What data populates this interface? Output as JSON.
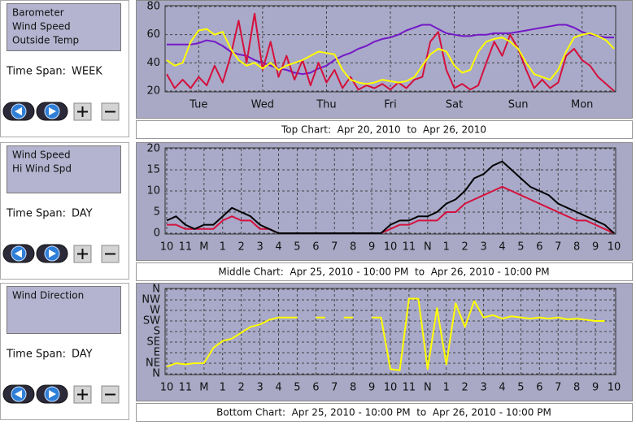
{
  "panels": [
    {
      "time_span_label": "Time Span:",
      "time_span": "WEEK"
    },
    {
      "time_span_label": "Time Span:",
      "time_span": "DAY"
    },
    {
      "time_span_label": "Time Span:",
      "time_span": "DAY"
    }
  ],
  "chart_data": [
    {
      "type": "line",
      "title": "Top Chart:  Apr 20, 2010  to  Apr 26, 2010",
      "grid": true,
      "xlim": [
        0,
        7
      ],
      "ylim": [
        20,
        80
      ],
      "yticks": [
        20,
        40,
        60,
        80
      ],
      "xticks": [
        {
          "value": 0.5,
          "label": "Tue"
        },
        {
          "value": 1.5,
          "label": "Wed"
        },
        {
          "value": 2.5,
          "label": "Thu"
        },
        {
          "value": 3.5,
          "label": "Fri"
        },
        {
          "value": 4.5,
          "label": "Sat"
        },
        {
          "value": 5.5,
          "label": "Sun"
        },
        {
          "value": 6.5,
          "label": "Mon"
        }
      ],
      "x": [
        0,
        0.125,
        0.25,
        0.375,
        0.5,
        0.625,
        0.75,
        0.875,
        1,
        1.125,
        1.25,
        1.375,
        1.5,
        1.625,
        1.75,
        1.875,
        2,
        2.125,
        2.25,
        2.375,
        2.5,
        2.625,
        2.75,
        2.875,
        3,
        3.125,
        3.25,
        3.375,
        3.5,
        3.625,
        3.75,
        3.875,
        4,
        4.125,
        4.25,
        4.375,
        4.5,
        4.625,
        4.75,
        4.875,
        5,
        5.125,
        5.25,
        5.375,
        5.5,
        5.625,
        5.75,
        5.875,
        6,
        6.125,
        6.25,
        6.375,
        6.5,
        6.625,
        6.75,
        6.875,
        7
      ],
      "series": [
        {
          "name": "Barometer",
          "color": "#7418c8",
          "values": [
            53,
            53,
            53,
            53,
            54,
            56,
            55,
            52,
            48,
            46,
            45,
            42,
            40,
            38,
            36,
            35,
            33,
            32,
            33,
            36,
            38,
            42,
            45,
            47,
            50,
            52,
            55,
            57,
            58,
            60,
            63,
            65,
            67,
            67,
            64,
            61,
            60,
            59,
            59,
            60,
            60,
            61,
            61,
            61,
            62,
            63,
            64,
            65,
            66,
            67,
            67,
            65,
            62,
            60,
            59,
            58,
            58
          ]
        },
        {
          "name": "Wind Speed",
          "color": "#d4103c",
          "values": [
            32,
            22,
            28,
            22,
            30,
            24,
            38,
            26,
            45,
            70,
            40,
            75,
            35,
            55,
            30,
            45,
            28,
            42,
            24,
            40,
            26,
            35,
            22,
            30,
            21,
            24,
            22,
            25,
            21,
            26,
            22,
            28,
            30,
            55,
            62,
            35,
            22,
            25,
            21,
            24,
            40,
            55,
            45,
            60,
            50,
            35,
            22,
            28,
            22,
            26,
            45,
            50,
            42,
            38,
            30,
            25,
            20
          ]
        },
        {
          "name": "Outside Temp",
          "color": "#ffff00",
          "values": [
            42,
            38,
            40,
            55,
            63,
            64,
            60,
            62,
            50,
            42,
            38,
            40,
            36,
            40,
            35,
            38,
            40,
            42,
            45,
            48,
            47,
            46,
            35,
            28,
            26,
            25,
            26,
            28,
            27,
            26,
            27,
            30,
            38,
            46,
            50,
            48,
            38,
            33,
            35,
            48,
            55,
            57,
            58,
            55,
            50,
            40,
            32,
            30,
            28,
            35,
            48,
            58,
            60,
            61,
            59,
            56,
            50
          ]
        }
      ]
    },
    {
      "type": "line",
      "title": "Middle Chart:  Apr 25, 2010 - 10:00 PM  to  Apr 26, 2010 - 10:00 PM",
      "grid": true,
      "xlim": [
        0,
        24
      ],
      "ylim": [
        0,
        20
      ],
      "yticks": [
        0,
        5,
        10,
        15,
        20
      ],
      "xticks": [
        {
          "value": 0,
          "label": "10"
        },
        {
          "value": 1,
          "label": "11"
        },
        {
          "value": 2,
          "label": "M"
        },
        {
          "value": 3,
          "label": "1"
        },
        {
          "value": 4,
          "label": "2"
        },
        {
          "value": 5,
          "label": "3"
        },
        {
          "value": 6,
          "label": "4"
        },
        {
          "value": 7,
          "label": "5"
        },
        {
          "value": 8,
          "label": "6"
        },
        {
          "value": 9,
          "label": "7"
        },
        {
          "value": 10,
          "label": "8"
        },
        {
          "value": 11,
          "label": "9"
        },
        {
          "value": 12,
          "label": "10"
        },
        {
          "value": 13,
          "label": "11"
        },
        {
          "value": 14,
          "label": "N"
        },
        {
          "value": 15,
          "label": "1"
        },
        {
          "value": 16,
          "label": "2"
        },
        {
          "value": 17,
          "label": "3"
        },
        {
          "value": 18,
          "label": "4"
        },
        {
          "value": 19,
          "label": "5"
        },
        {
          "value": 20,
          "label": "6"
        },
        {
          "value": 21,
          "label": "7"
        },
        {
          "value": 22,
          "label": "8"
        },
        {
          "value": 23,
          "label": "9"
        },
        {
          "value": 24,
          "label": "10"
        }
      ],
      "x": [
        0,
        0.5,
        1,
        1.5,
        2,
        2.5,
        3,
        3.5,
        4,
        4.5,
        5,
        5.5,
        6,
        6.5,
        7,
        7.5,
        8,
        8.5,
        9,
        9.5,
        10,
        10.5,
        11,
        11.5,
        12,
        12.5,
        13,
        13.5,
        14,
        14.5,
        15,
        15.5,
        16,
        16.5,
        17,
        17.5,
        18,
        18.5,
        19,
        19.5,
        20,
        20.5,
        21,
        21.5,
        22,
        22.5,
        23,
        23.5,
        24
      ],
      "series": [
        {
          "name": "Wind Speed",
          "color": "#d4103c",
          "values": [
            2,
            2,
            1,
            1,
            1,
            1,
            3,
            4,
            3,
            3,
            1,
            1,
            0,
            0,
            0,
            0,
            0,
            0,
            0,
            0,
            0,
            0,
            0,
            0,
            1,
            2,
            2,
            3,
            3,
            3,
            5,
            5,
            7,
            8,
            9,
            10,
            11,
            10,
            9,
            8,
            7,
            6,
            5,
            4,
            3,
            3,
            2,
            1,
            0
          ]
        },
        {
          "name": "Hi Wind Spd",
          "color": "#000000",
          "values": [
            3,
            4,
            2,
            1,
            2,
            2,
            4,
            6,
            5,
            4,
            2,
            1,
            0,
            0,
            0,
            0,
            0,
            0,
            0,
            0,
            0,
            0,
            0,
            0,
            2,
            3,
            3,
            4,
            4,
            5,
            7,
            8,
            10,
            13,
            14,
            16,
            17,
            15,
            13,
            11,
            10,
            9,
            7,
            6,
            5,
            4,
            3,
            2,
            0
          ]
        }
      ]
    },
    {
      "type": "line",
      "title": "Bottom Chart:  Apr 25, 2010 - 10:00 PM  to  Apr 26, 2010 - 10:00 PM",
      "grid": true,
      "xlim": [
        0,
        24
      ],
      "ylim": [
        0,
        360
      ],
      "yticks": [
        {
          "value": 0,
          "label": "N"
        },
        {
          "value": 45,
          "label": "NE"
        },
        {
          "value": 90,
          "label": "E"
        },
        {
          "value": 135,
          "label": "SE"
        },
        {
          "value": 180,
          "label": "S"
        },
        {
          "value": 225,
          "label": "SW"
        },
        {
          "value": 270,
          "label": "W"
        },
        {
          "value": 315,
          "label": "NW"
        },
        {
          "value": 360,
          "label": "N"
        }
      ],
      "xticks": [
        {
          "value": 0,
          "label": "10"
        },
        {
          "value": 1,
          "label": "11"
        },
        {
          "value": 2,
          "label": "M"
        },
        {
          "value": 3,
          "label": "1"
        },
        {
          "value": 4,
          "label": "2"
        },
        {
          "value": 5,
          "label": "3"
        },
        {
          "value": 6,
          "label": "4"
        },
        {
          "value": 7,
          "label": "5"
        },
        {
          "value": 8,
          "label": "6"
        },
        {
          "value": 9,
          "label": "7"
        },
        {
          "value": 10,
          "label": "8"
        },
        {
          "value": 11,
          "label": "9"
        },
        {
          "value": 12,
          "label": "10"
        },
        {
          "value": 13,
          "label": "11"
        },
        {
          "value": 14,
          "label": "N"
        },
        {
          "value": 15,
          "label": "1"
        },
        {
          "value": 16,
          "label": "2"
        },
        {
          "value": 17,
          "label": "3"
        },
        {
          "value": 18,
          "label": "4"
        },
        {
          "value": 19,
          "label": "5"
        },
        {
          "value": 20,
          "label": "6"
        },
        {
          "value": 21,
          "label": "7"
        },
        {
          "value": 22,
          "label": "8"
        },
        {
          "value": 23,
          "label": "9"
        },
        {
          "value": 24,
          "label": "10"
        }
      ],
      "x": [
        0,
        0.5,
        1,
        1.5,
        2,
        2.5,
        3,
        3.5,
        4,
        4.5,
        5,
        5.5,
        6,
        6.5,
        7,
        7.5,
        8,
        8.5,
        9,
        9.5,
        10,
        10.5,
        11,
        11.5,
        12,
        12.5,
        13,
        13.5,
        14,
        14.5,
        15,
        15.5,
        16,
        16.5,
        17,
        17.5,
        18,
        18.5,
        19,
        19.5,
        20,
        20.5,
        21,
        21.5,
        22,
        22.5,
        23,
        23.5,
        24
      ],
      "series": [
        {
          "name": "Wind Direction",
          "color": "#ffff00",
          "values": [
            30,
            45,
            40,
            45,
            45,
            110,
            140,
            150,
            175,
            200,
            210,
            230,
            240,
            240,
            240,
            null,
            240,
            240,
            null,
            240,
            240,
            null,
            240,
            240,
            20,
            15,
            320,
            320,
            20,
            280,
            40,
            300,
            200,
            310,
            240,
            250,
            235,
            245,
            240,
            235,
            240,
            235,
            240,
            232,
            235,
            230,
            225,
            225,
            null
          ]
        }
      ]
    }
  ]
}
